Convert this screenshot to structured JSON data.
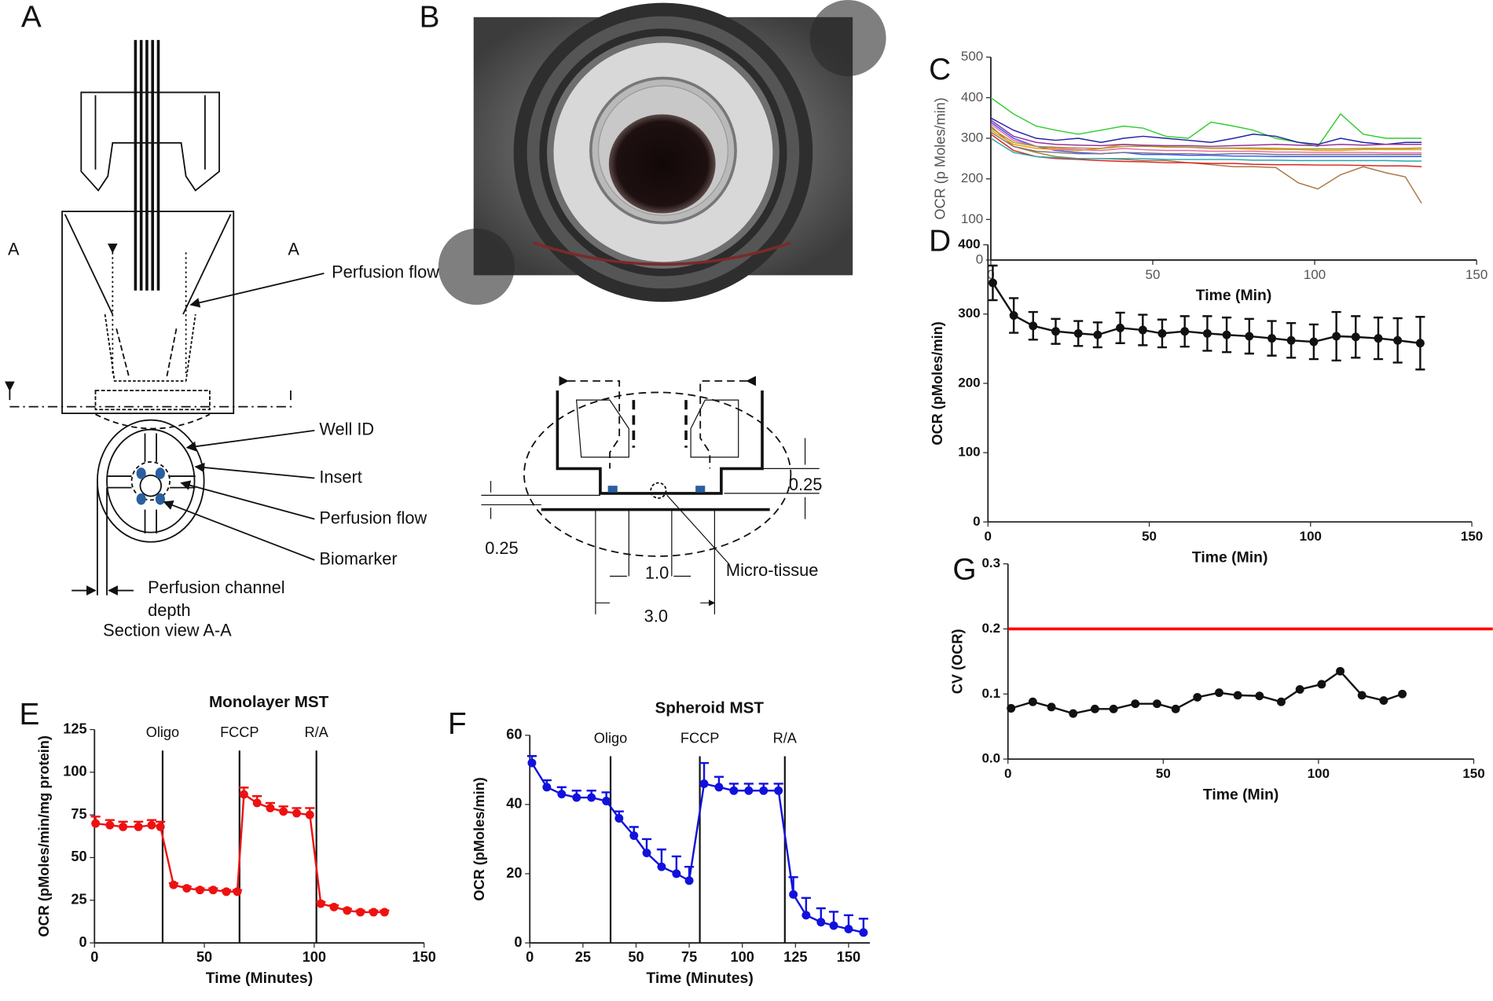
{
  "diagram_a": {
    "panel": "A",
    "section_marks": [
      "A",
      "A"
    ],
    "labels": [
      "Perfusion flow",
      "Well ID",
      "Insert",
      "Perfusion flow",
      "Biomarker",
      "Perfusion channel",
      "depth",
      "Section view A-A"
    ]
  },
  "diagram_b": {
    "panel": "B",
    "labels": [
      "0.25",
      "0.25",
      "1.0",
      "3.0",
      "Micro-tissue"
    ]
  },
  "chart_data": [
    {
      "type": "line",
      "panel": "C",
      "xlabel": "Time (Min)",
      "ylabel": "OCR (p Moles/min)",
      "xlim": [
        0,
        150
      ],
      "xticks": [
        0,
        50,
        100,
        150
      ],
      "ylim": [
        0,
        500
      ],
      "yticks": [
        0,
        100,
        200,
        300,
        400,
        500
      ],
      "markers": false,
      "x": [
        0,
        7,
        14,
        20,
        27,
        34,
        41,
        47,
        54,
        61,
        68,
        75,
        81,
        88,
        95,
        101,
        108,
        115,
        122,
        128,
        133
      ],
      "series": [
        {
          "color": "#33cc33",
          "values": [
            400,
            360,
            330,
            320,
            310,
            320,
            330,
            325,
            305,
            300,
            340,
            330,
            320,
            300,
            290,
            280,
            360,
            310,
            300,
            300,
            300
          ]
        },
        {
          "color": "#aa7744",
          "values": [
            330,
            280,
            265,
            255,
            250,
            250,
            248,
            245,
            245,
            240,
            235,
            230,
            230,
            228,
            190,
            175,
            210,
            230,
            215,
            205,
            140
          ]
        },
        {
          "color": "#2222aa",
          "values": [
            350,
            320,
            300,
            295,
            300,
            290,
            300,
            305,
            300,
            295,
            290,
            300,
            310,
            305,
            290,
            285,
            300,
            290,
            285,
            290,
            290
          ]
        },
        {
          "color": "#3355ff",
          "values": [
            340,
            300,
            280,
            270,
            265,
            262,
            265,
            260,
            260,
            258,
            258,
            256,
            256,
            255,
            255,
            255,
            255,
            255,
            255,
            255,
            255
          ]
        },
        {
          "color": "#dd2222",
          "values": [
            310,
            270,
            255,
            250,
            248,
            245,
            243,
            242,
            240,
            240,
            238,
            238,
            236,
            235,
            235,
            234,
            234,
            233,
            232,
            232,
            230
          ]
        },
        {
          "color": "#ff9900",
          "values": [
            320,
            285,
            275,
            272,
            270,
            275,
            285,
            282,
            278,
            278,
            275,
            275,
            273,
            272,
            272,
            270,
            270,
            272,
            272,
            272,
            272
          ]
        },
        {
          "color": "#993399",
          "values": [
            345,
            305,
            290,
            285,
            283,
            282,
            285,
            283,
            282,
            282,
            280,
            282,
            283,
            285,
            283,
            282,
            285,
            283,
            285,
            285,
            285
          ]
        },
        {
          "color": "#22aaaa",
          "values": [
            300,
            265,
            255,
            252,
            250,
            250,
            250,
            250,
            248,
            248,
            248,
            248,
            246,
            246,
            245,
            245,
            245,
            245,
            245,
            244,
            244
          ]
        },
        {
          "color": "#ee66aa",
          "values": [
            335,
            295,
            280,
            275,
            272,
            270,
            275,
            272,
            270,
            270,
            268,
            268,
            268,
            266,
            266,
            265,
            265,
            265,
            264,
            264,
            264
          ]
        },
        {
          "color": "#999933",
          "values": [
            325,
            290,
            280,
            278,
            276,
            275,
            280,
            280,
            279,
            278,
            276,
            276,
            276,
            275,
            274,
            274,
            274,
            275,
            275,
            275,
            276
          ]
        },
        {
          "color": "#777777",
          "values": [
            315,
            280,
            268,
            265,
            262,
            262,
            265,
            264,
            262,
            262,
            260,
            262,
            262,
            260,
            260,
            260,
            260,
            260,
            260,
            260,
            260
          ]
        }
      ]
    },
    {
      "type": "line",
      "panel": "D",
      "xlabel": "Time (Min)",
      "ylabel": "OCR (pMoles/min)",
      "xlim": [
        0,
        150
      ],
      "xticks": [
        0,
        50,
        100,
        150
      ],
      "ylim": [
        0,
        400
      ],
      "yticks": [
        0,
        100,
        200,
        300,
        400
      ],
      "markers": true,
      "error_bars": "both",
      "x": [
        1.5,
        8,
        14,
        21,
        28,
        34,
        41,
        48,
        54,
        61,
        68,
        74,
        81,
        88,
        94,
        101,
        108,
        114,
        121,
        127,
        134
      ],
      "series": [
        {
          "color": "#111111",
          "values": [
            345,
            298,
            283,
            275,
            272,
            270,
            280,
            277,
            272,
            275,
            272,
            270,
            268,
            265,
            262,
            260,
            268,
            267,
            265,
            262,
            258
          ],
          "errors": [
            25,
            25,
            20,
            18,
            18,
            18,
            22,
            22,
            20,
            22,
            25,
            25,
            25,
            25,
            25,
            25,
            35,
            30,
            30,
            32,
            38
          ]
        }
      ]
    },
    {
      "type": "line",
      "panel": "G",
      "xlabel": "Time (Min)",
      "ylabel": "CV (OCR)",
      "xlim": [
        0,
        150
      ],
      "xticks": [
        0,
        50,
        100,
        150
      ],
      "ylim": [
        0,
        0.3
      ],
      "yticks": [
        {
          "value": 0,
          "label": "0.0"
        },
        0.1,
        0.2,
        0.3
      ],
      "markers": true,
      "reference_line": {
        "value": 0.2,
        "color": "#ff0000"
      },
      "x": [
        1,
        8,
        14,
        21,
        28,
        34,
        41,
        48,
        54,
        61,
        68,
        74,
        81,
        88,
        94,
        101,
        107,
        114,
        121,
        127
      ],
      "series": [
        {
          "color": "#111111",
          "values": [
            0.078,
            0.088,
            0.08,
            0.07,
            0.077,
            0.077,
            0.085,
            0.085,
            0.077,
            0.095,
            0.102,
            0.098,
            0.097,
            0.088,
            0.107,
            0.115,
            0.135,
            0.098,
            0.09,
            0.1
          ]
        }
      ]
    },
    {
      "type": "line",
      "panel": "E",
      "title": "Monolayer MST",
      "xlabel": "Time (Minutes)",
      "ylabel": "OCR (pMoles/min/mg protein)",
      "xlim": [
        0,
        150
      ],
      "xticks": [
        0,
        50,
        100,
        150
      ],
      "ylim": [
        0,
        125
      ],
      "yticks": [
        0,
        25,
        50,
        75,
        100,
        125
      ],
      "markers": true,
      "error_bars": "upper",
      "events": [
        {
          "x": 31,
          "label": "Oligo"
        },
        {
          "x": 66,
          "label": "FCCP"
        },
        {
          "x": 101,
          "label": "R/A"
        }
      ],
      "x": [
        0.5,
        7,
        13,
        20,
        26,
        30,
        36,
        42,
        48,
        54,
        60,
        65,
        68,
        74,
        80,
        86,
        92,
        98,
        103,
        109,
        115,
        121,
        127,
        132
      ],
      "series": [
        {
          "color": "#ee1111",
          "values": [
            70,
            69,
            68,
            68,
            69,
            68,
            34,
            32,
            31,
            31,
            30,
            30,
            87,
            82,
            79,
            77,
            76,
            75,
            23,
            21,
            19,
            18,
            18,
            18
          ],
          "errors": [
            4,
            3,
            3,
            3,
            3,
            3,
            1,
            1,
            1,
            1,
            1,
            1,
            4,
            4,
            3,
            3,
            3,
            4,
            1,
            1,
            1,
            1,
            1,
            1
          ]
        }
      ]
    },
    {
      "type": "line",
      "panel": "F",
      "title": "Spheroid MST",
      "xlabel": "Time (Minutes)",
      "ylabel": "OCR (pMoles/min)",
      "xlim": [
        0,
        160
      ],
      "xticks": [
        0,
        25,
        50,
        75,
        100,
        125,
        150
      ],
      "ylim": [
        0,
        60
      ],
      "yticks": [
        0,
        20,
        40,
        60
      ],
      "markers": true,
      "error_bars": "upper",
      "events": [
        {
          "x": 38,
          "label": "Oligo"
        },
        {
          "x": 80,
          "label": "FCCP"
        },
        {
          "x": 120,
          "label": "R/A"
        }
      ],
      "x": [
        1,
        8,
        15,
        22,
        29,
        36,
        42,
        49,
        55,
        62,
        69,
        75,
        82,
        89,
        96,
        103,
        110,
        117,
        124,
        130,
        137,
        143,
        150,
        157
      ],
      "series": [
        {
          "color": "#1111dd",
          "values": [
            52,
            45,
            43,
            42,
            42,
            41,
            36,
            31,
            26,
            22,
            20,
            18,
            46,
            45,
            44,
            44,
            44,
            44,
            14,
            8,
            6,
            5,
            4,
            3
          ],
          "errors": [
            2,
            2,
            2,
            2,
            2,
            2.5,
            2,
            2.5,
            4,
            5,
            5,
            4,
            6,
            3,
            2,
            2,
            2,
            2,
            5,
            5,
            4,
            4,
            4,
            4
          ]
        }
      ]
    }
  ]
}
